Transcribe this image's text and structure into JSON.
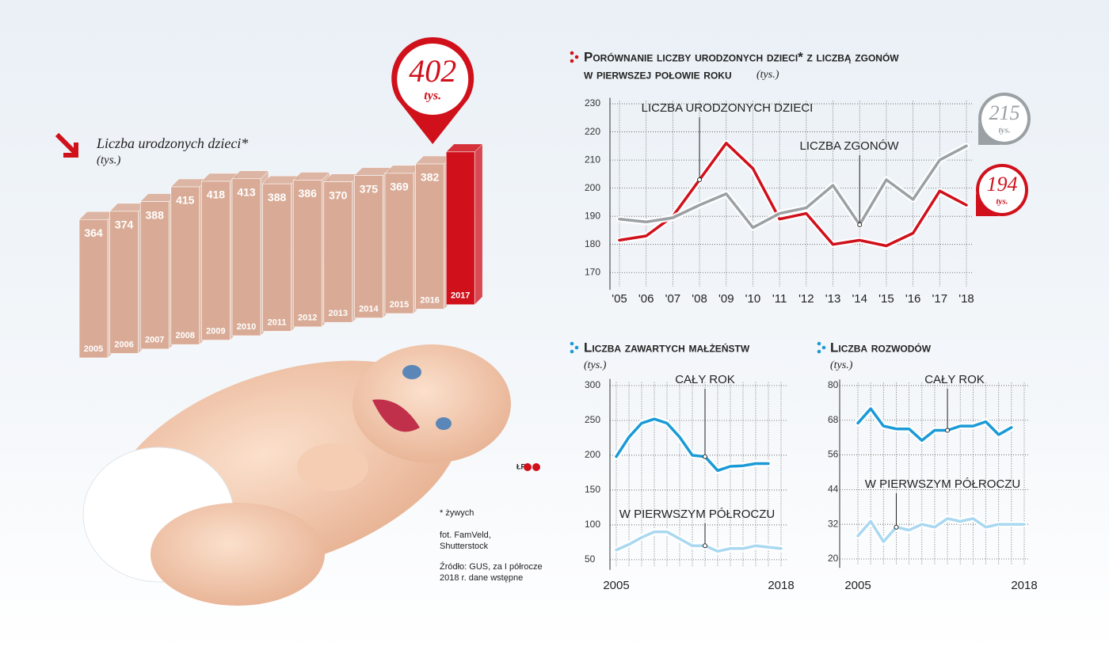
{
  "chart_data": [
    {
      "type": "bar3d",
      "title": "Liczba urodzonych dzieci*",
      "subtitle": "(tys.)",
      "categories": [
        "2005",
        "2006",
        "2007",
        "2008",
        "2009",
        "2010",
        "2011",
        "2012",
        "2013",
        "2014",
        "2015",
        "2016",
        "2017"
      ],
      "values": [
        364,
        374,
        388,
        415,
        418,
        413,
        388,
        386,
        370,
        375,
        369,
        382,
        402
      ],
      "color": "#d9ab96",
      "highlight_color": "#d0101b",
      "unit_label": "tys."
    },
    {
      "type": "line",
      "title": [
        "Porównanie liczby urodzonych dzieci* z liczbą zgonów",
        "w pierwszej połowie roku"
      ],
      "subtitle": "(tys.)",
      "categories": [
        "'05",
        "'06",
        "'07",
        "'08",
        "'09",
        "'10",
        "'11",
        "'12",
        "'13",
        "'14",
        "'15",
        "'16",
        "'17",
        "'18"
      ],
      "series": [
        {
          "name": "LICZBA URODZONYCH DZIECI",
          "color": "#d0101b",
          "values": [
            181.5,
            183,
            190,
            203,
            216,
            207,
            189,
            191,
            180,
            181.5,
            179.5,
            184,
            199,
            194
          ]
        },
        {
          "name": "LICZBA ZGONÓW",
          "color": "#9aa0a3",
          "values": [
            189,
            188,
            189.5,
            194,
            198,
            186,
            191,
            193,
            201,
            187,
            203,
            196,
            210,
            215
          ]
        }
      ],
      "ylim": [
        165,
        231
      ],
      "yticks": [
        170,
        180,
        190,
        200,
        210,
        220,
        230
      ],
      "grid": true,
      "unit_label": "tys."
    },
    {
      "type": "line",
      "title": "Liczba zawartych małżeństw",
      "subtitle": "(tys.)",
      "x": [
        2005,
        2006,
        2007,
        2008,
        2009,
        2010,
        2011,
        2012,
        2013,
        2014,
        2015,
        2016,
        2017,
        2018
      ],
      "series": [
        {
          "name": "CAŁY ROK",
          "color": "#1a9ad6",
          "values": [
            198,
            226,
            246,
            252,
            246,
            226,
            200,
            198,
            178,
            184,
            185,
            188,
            188,
            null
          ]
        },
        {
          "name": "W PIERWSZYM PÓŁROCZU",
          "color": "#a9d8f0",
          "values": [
            64,
            72,
            82,
            90,
            90,
            80,
            70,
            70,
            62,
            66,
            66,
            70,
            68,
            66
          ]
        }
      ],
      "xlim": [
        2005,
        2018
      ],
      "xticks": [
        2005,
        2018
      ],
      "ylim": [
        40,
        305
      ],
      "yticks": [
        50,
        100,
        150,
        200,
        250,
        300
      ],
      "grid": true
    },
    {
      "type": "line",
      "title": "Liczba rozwodów",
      "subtitle": "(tys.)",
      "x": [
        2005,
        2006,
        2007,
        2008,
        2009,
        2010,
        2011,
        2012,
        2013,
        2014,
        2015,
        2016,
        2017,
        2018
      ],
      "series": [
        {
          "name": "CAŁY ROK",
          "color": "#1a9ad6",
          "values": [
            67,
            72,
            66,
            65,
            65,
            61,
            64.5,
            64.5,
            66,
            66,
            67.5,
            63,
            65.5,
            null
          ]
        },
        {
          "name": "W PIERWSZYM PÓŁROCZU",
          "color": "#a9d8f0",
          "values": [
            28,
            33,
            26,
            31,
            30,
            32,
            31,
            34,
            33,
            34,
            31,
            32,
            32,
            32
          ]
        }
      ],
      "xlim": [
        2005,
        2018
      ],
      "xticks": [
        2005,
        2018
      ],
      "ylim": [
        18,
        81
      ],
      "yticks": [
        20,
        32,
        44,
        56,
        68,
        80
      ],
      "grid": true
    }
  ],
  "notes": {
    "asterisk": "* żywych",
    "photo": [
      "fot. FamVeld,",
      "Shutterstock"
    ],
    "source": [
      "Źródło: GUS, za I półrocze",
      "2018 r. dane wstępne"
    ],
    "logo": "ŁR"
  }
}
